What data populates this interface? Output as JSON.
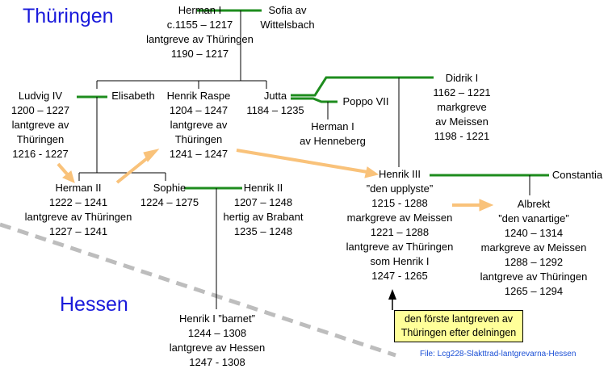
{
  "regions": {
    "thuringen": "Thüringen",
    "hessen": "Hessen"
  },
  "persons": {
    "herman_i": [
      "Herman I",
      "c.1155 – 1217",
      "lantgreve av Thüringen",
      "1190 – 1217"
    ],
    "sofia": [
      "Sofia av",
      "Wittelsbach"
    ],
    "ludvig_iv": [
      "Ludvig IV",
      "1200 – 1227",
      "lantgreve av",
      "Thüringen",
      "1216 - 1227"
    ],
    "elisabeth": [
      "Elisabeth"
    ],
    "henrik_raspe": [
      "Henrik Raspe",
      "1204 – 1247",
      "lantgreve av",
      "Thüringen",
      "1241 – 1247"
    ],
    "jutta": [
      "Jutta",
      "1184 – 1235"
    ],
    "poppo_vii": [
      "Poppo VII"
    ],
    "herman_henneberg": [
      "Herman I",
      "av Henneberg"
    ],
    "didrik_i": [
      "Didrik I",
      "1162 – 1221",
      "markgreve",
      "av Meissen",
      "1198 - 1221"
    ],
    "herman_ii": [
      "Herman II",
      "1222 – 1241",
      "lantgreve av Thüringen",
      "1227 – 1241"
    ],
    "sophie": [
      "Sophie",
      "1224 – 1275"
    ],
    "henrik_ii": [
      "Henrik II",
      "1207 – 1248",
      "hertig av Brabant",
      "1235 – 1248"
    ],
    "henrik_iii": [
      "Henrik III",
      "”den upplyste”",
      "1215 - 1288",
      "markgreve av Meissen",
      "1221 – 1288",
      "lantgreve av Thüringen",
      "som Henrik I",
      "1247 - 1265"
    ],
    "constantia": [
      "Constantia"
    ],
    "albrekt": [
      "Albrekt",
      "”den vanartige”",
      "1240 – 1314",
      "markgreve av Meissen",
      "1288 – 1292",
      "lantgreve av Thüringen",
      "1265 – 1294"
    ],
    "henrik_i_barnet": [
      "Henrik I ”barnet”",
      "1244 – 1308",
      "lantgreve av Hessen",
      "1247 - 1308"
    ]
  },
  "note": [
    "den förste lantgreven  av",
    "Thüringen efter delningen"
  ],
  "file_caption": "File: Lcg228-Slakttrad-lantgrevarna-Hessen",
  "colors": {
    "marriage_line": "#1e8c1e",
    "descent_line": "#000000",
    "arrow": "#f9c27a",
    "region_text": "#1a1adb",
    "divider": "#bdbdbd",
    "note_bg": "#ffff99"
  }
}
